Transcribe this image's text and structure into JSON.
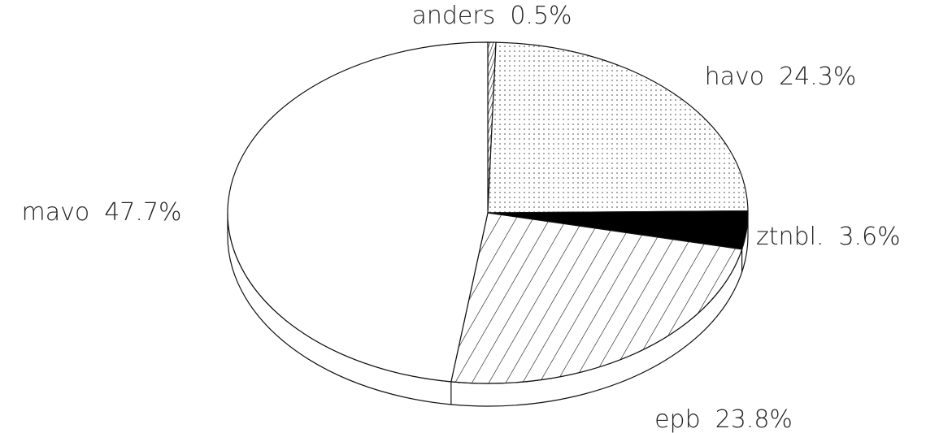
{
  "chart_data": {
    "type": "pie",
    "categories": [
      "anders",
      "havo",
      "ztnbl.",
      "epb",
      "mavo"
    ],
    "values": [
      0.5,
      24.3,
      3.6,
      23.8,
      47.7
    ],
    "value_labels": [
      "0.5%",
      "24.3%",
      "3.6%",
      "23.8%",
      "47.7%"
    ],
    "fills": [
      "url(#hatch-fine)",
      "url(#dots)",
      "#000000",
      "url(#hatch)",
      "#ffffff"
    ]
  }
}
